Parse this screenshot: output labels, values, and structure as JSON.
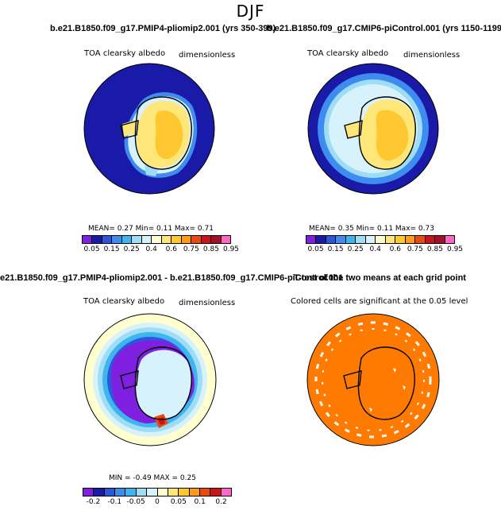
{
  "figure": {
    "season": "DJF"
  },
  "panels": {
    "top_left": {
      "case_title": "b.e21.B1850.f09_g17.PMIP4-pliomip2.001 (yrs 350-399)",
      "variable": "TOA clearsky albedo",
      "units": "dimensionless",
      "stats": "MEAN=   0.27   Min=   0.11   Max=   0.71"
    },
    "top_right": {
      "case_title": "b.e21.B1850.f09_g17.CMIP6-piControl.001 (yrs 1150-1199)",
      "variable": "TOA clearsky albedo",
      "units": "dimensionless",
      "stats": "MEAN=   0.35   Min=   0.11   Max=   0.73"
    },
    "bottom_left": {
      "case_title": "e21.B1850.f09_g17.PMIP4-pliomip2.001 - b.e21.B1850.f09_g17.CMIP6-piControl.001",
      "variable": "TOA clearsky albedo",
      "units": "dimensionless",
      "stats": "MIN =   -0.49  MAX =    0.25"
    },
    "bottom_right": {
      "case_title": "T-test of the two means at each grid point",
      "caption": "Colored cells are significant at the 0.05 level"
    }
  },
  "colorbars": {
    "absolute": {
      "colors": [
        "#7f1fe0",
        "#1a1aa8",
        "#2a58d8",
        "#3f8cf0",
        "#3fb5f0",
        "#9fdcf5",
        "#d8f2fb",
        "#ffffd0",
        "#ffe678",
        "#ffc830",
        "#ff9a1a",
        "#e84a10",
        "#c8141a",
        "#a01028",
        "#ff66c8"
      ],
      "labels": [
        "0.05",
        "0.15",
        "0.25",
        "0.4",
        "0.6",
        "0.75",
        "0.85",
        "0.95"
      ]
    },
    "difference": {
      "colors": [
        "#7f1fe0",
        "#1a1aa8",
        "#2a58d8",
        "#3f8cf0",
        "#3fb5f0",
        "#9fdcf5",
        "#d8f2fb",
        "#ffffd0",
        "#ffe678",
        "#ffc830",
        "#ff9a1a",
        "#e84a10",
        "#c8141a",
        "#ff66c8"
      ],
      "labels": [
        "-0.2",
        "-0.1",
        "-0.05",
        "0",
        "0.05",
        "0.1",
        "0.2"
      ]
    }
  },
  "colors": {
    "ocean_deep": "#1a1aa8",
    "ttest_significant": "#ff7a00",
    "coastline": "#000000"
  }
}
